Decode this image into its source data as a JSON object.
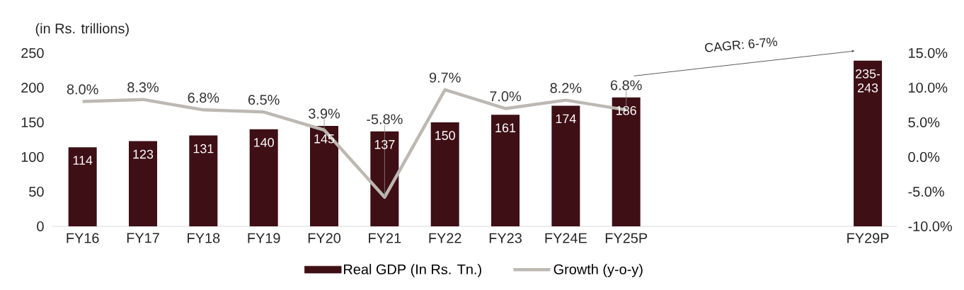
{
  "chart_data": {
    "type": "bar",
    "ylabel": "(in Rs. trillions)",
    "categories": [
      "FY16",
      "FY17",
      "FY18",
      "FY19",
      "FY20",
      "FY21",
      "FY22",
      "FY23",
      "FY24E",
      "FY25P",
      null,
      null,
      null,
      "FY29P"
    ],
    "series": [
      {
        "name": "Real GDP (In Rs. Tn.)",
        "color": "#3e0f14",
        "values": [
          114,
          123,
          131,
          140,
          145,
          137,
          150,
          161,
          174,
          186,
          null,
          null,
          null,
          239
        ],
        "value_labels": [
          "114",
          "123",
          "131",
          "140",
          "145",
          "137",
          "150",
          "161",
          "174",
          "186",
          null,
          null,
          null,
          "235-243"
        ]
      },
      {
        "name": "Growth (y-o-y)",
        "type": "line",
        "axis": "y2",
        "color": "#bdb8b1",
        "values": [
          8.0,
          8.3,
          6.8,
          6.5,
          3.9,
          -5.8,
          9.7,
          7.0,
          8.2,
          6.8,
          null,
          null,
          null,
          null
        ],
        "value_labels": [
          "8.0%",
          "8.3%",
          "6.8%",
          "6.5%",
          "3.9%",
          "-5.8%",
          "9.7%",
          "7.0%",
          "8.2%",
          "6.8%",
          null,
          null,
          null,
          null
        ]
      }
    ],
    "ylim": [
      0,
      250
    ],
    "yticks": [
      0,
      50,
      100,
      150,
      200,
      250
    ],
    "y2lim": [
      -10,
      15
    ],
    "y2ticks": [
      {
        "value": -10,
        "label": "-10.0%"
      },
      {
        "value": -5,
        "label": "-5.0%"
      },
      {
        "value": 0,
        "label": "0.0%"
      },
      {
        "value": 5,
        "label": "5.0%"
      },
      {
        "value": 10,
        "label": "10.0%"
      },
      {
        "value": 15,
        "label": "15.0%"
      }
    ],
    "annotations": [
      "CAGR: 6-7%"
    ],
    "legend": "bottom"
  }
}
